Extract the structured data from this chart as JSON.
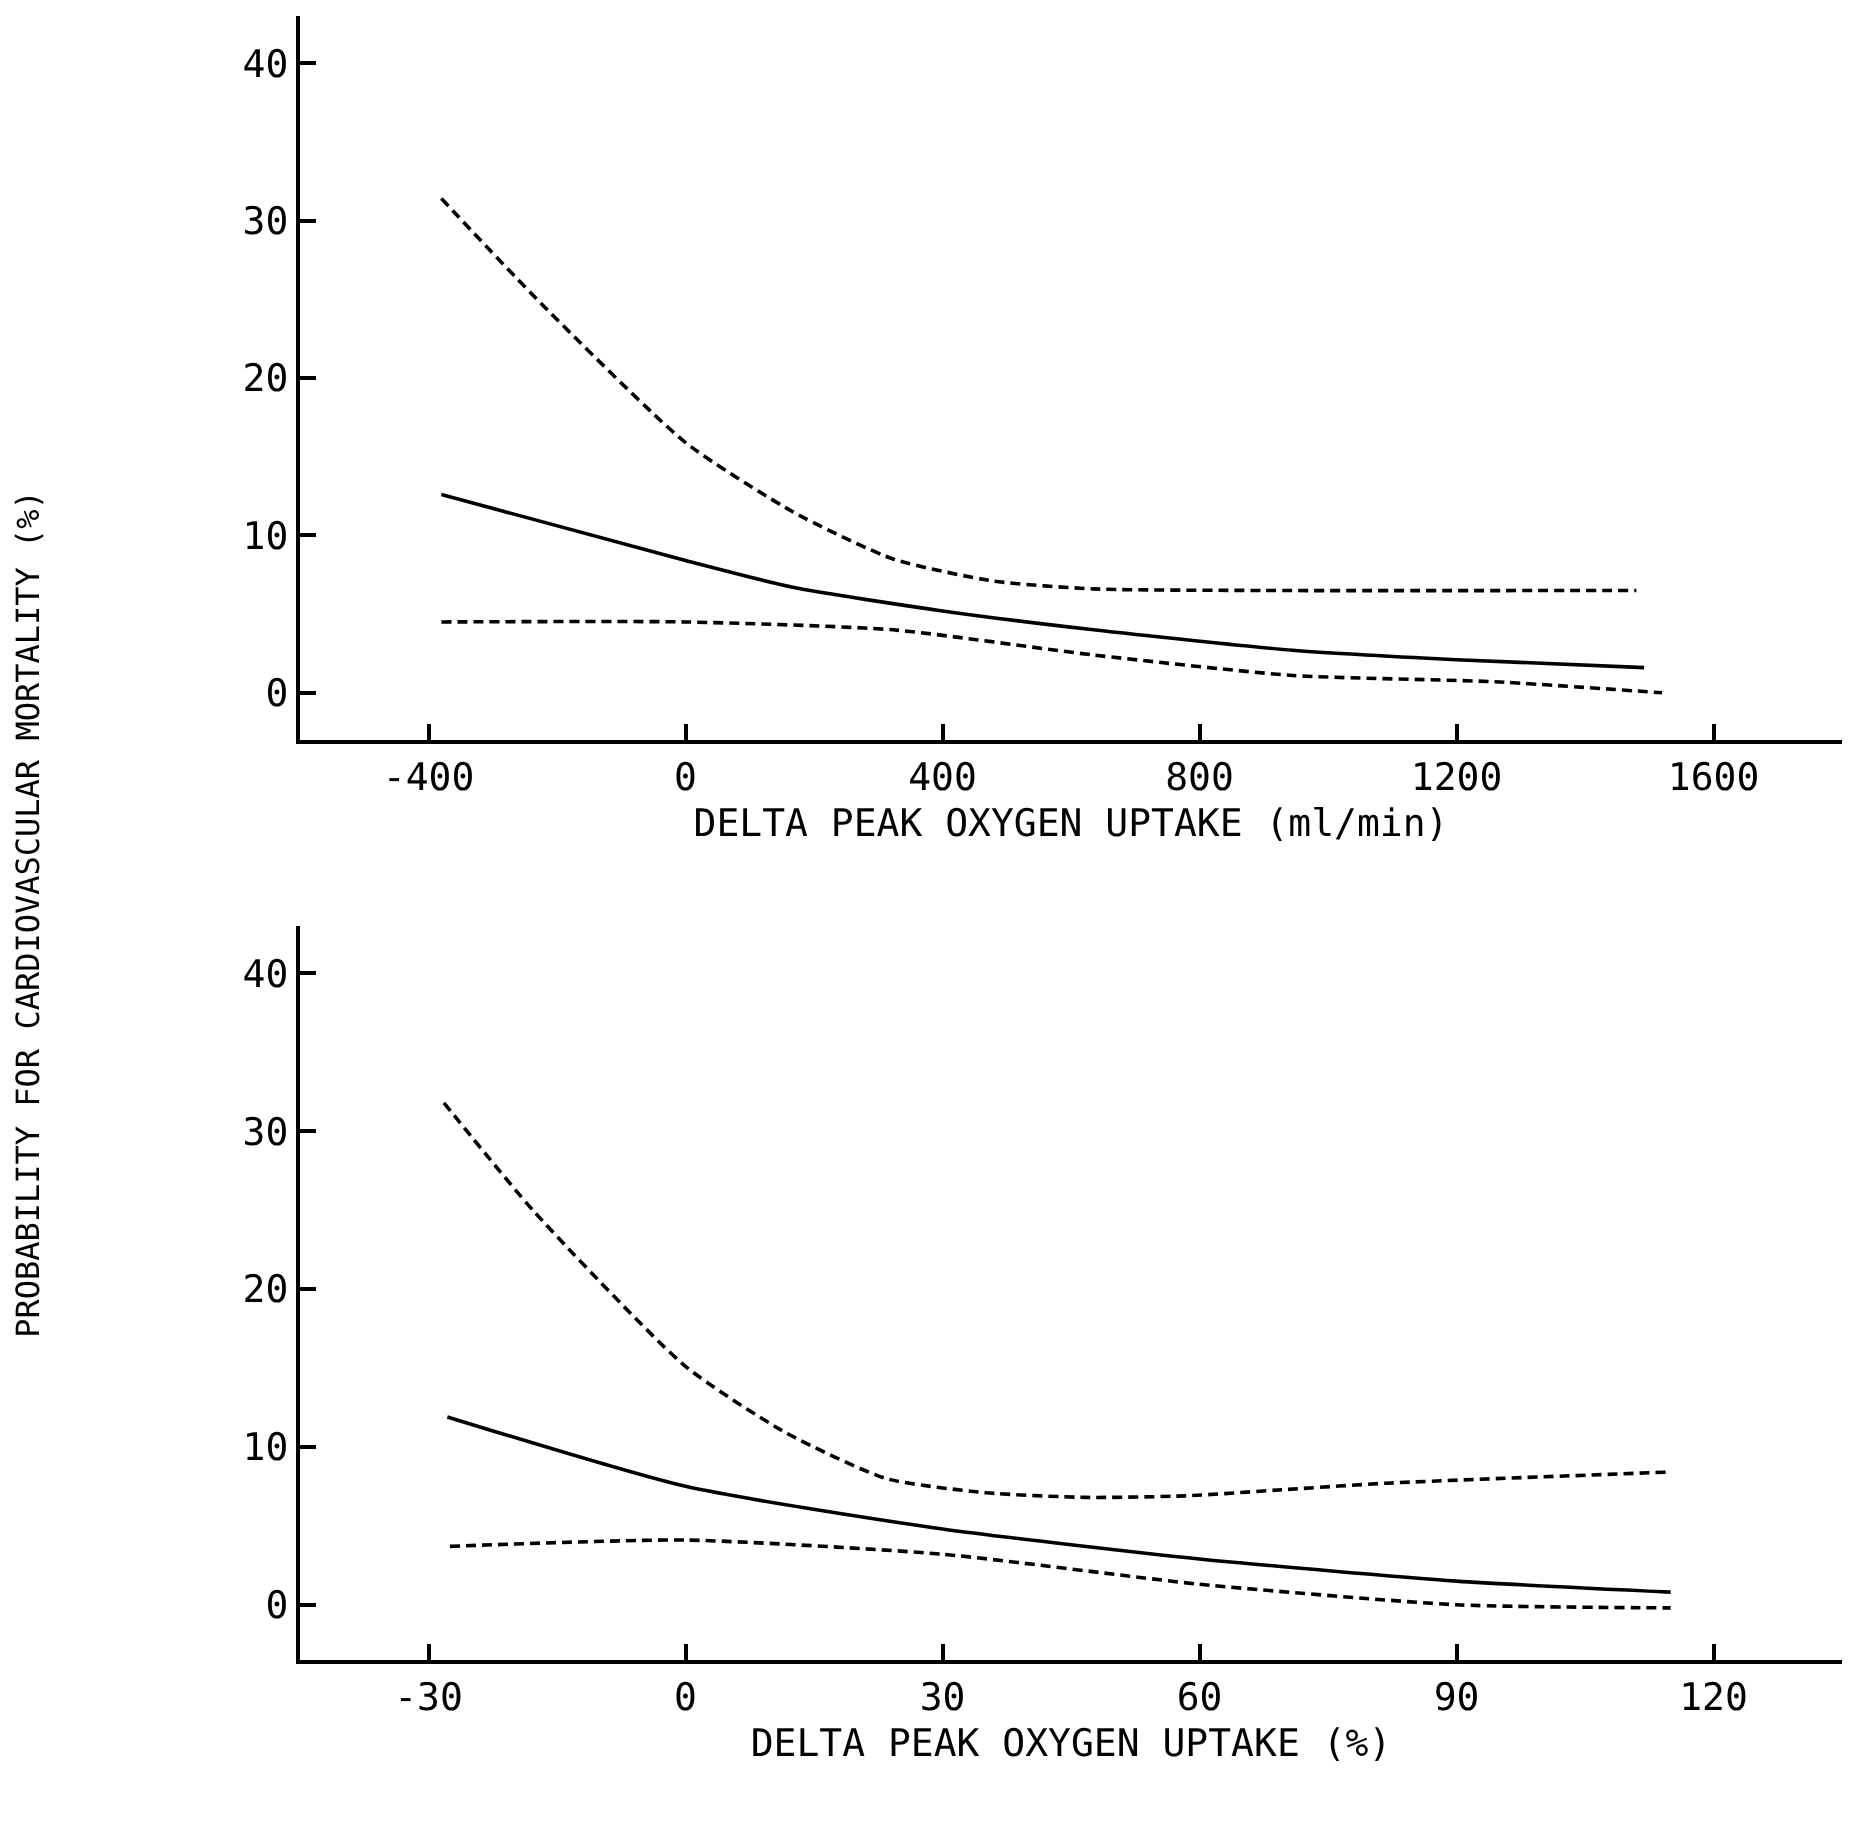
{
  "chart_data": [
    {
      "type": "line",
      "xlabel": "DELTA PEAK OXYGEN UPTAKE (ml/min)",
      "ylabel": "PROBABILITY FOR CARDIOVASCULAR MORTALITY (%)",
      "xlim": [
        -600,
        1800
      ],
      "xticks": [
        -400,
        0,
        400,
        800,
        1200,
        1600
      ],
      "ylim": [
        -3,
        43
      ],
      "yticks": [
        0,
        10,
        20,
        30,
        40
      ],
      "series": [
        {
          "color": "#000000",
          "line_style": "dashed",
          "x": [
            -380,
            -224,
            0,
            167,
            323,
            479,
            635,
            900,
            1480
          ],
          "values": [
            31.4,
            24.7,
            15.9,
            11.5,
            8.5,
            7.1,
            6.6,
            6.5,
            6.5
          ]
        },
        {
          "color": "#000000",
          "line_style": "solid",
          "x": [
            -380,
            0,
            167,
            400,
            635,
            945,
            1200,
            1492
          ],
          "values": [
            12.6,
            8.4,
            6.7,
            5.2,
            4.0,
            2.7,
            2.1,
            1.6
          ]
        },
        {
          "color": "#000000",
          "line_style": "dashed",
          "x": [
            -380,
            0,
            323,
            635,
            945,
            1260,
            1520
          ],
          "values": [
            4.5,
            4.5,
            4.0,
            2.4,
            1.1,
            0.7,
            0
          ]
        }
      ]
    },
    {
      "type": "line",
      "xlabel": "DELTA PEAK OXYGEN UPTAKE (%)",
      "xlim": [
        -45,
        135
      ],
      "xticks": [
        -30,
        0,
        30,
        60,
        90,
        120
      ],
      "ylim": [
        -3.5,
        43
      ],
      "yticks": [
        0,
        10,
        20,
        30,
        40
      ],
      "series": [
        {
          "color": "#000000",
          "line_style": "dashed",
          "x": [
            -28.2,
            -17.5,
            0,
            11.7,
            23.4,
            35,
            46.8,
            58.4,
            70.1,
            81.8,
            114.5
          ],
          "values": [
            31.8,
            24.8,
            15.1,
            10.9,
            8.0,
            7.1,
            6.8,
            6.9,
            7.3,
            7.7,
            8.4
          ]
        },
        {
          "color": "#000000",
          "line_style": "solid",
          "x": [
            -27.8,
            0,
            30,
            60,
            90,
            115
          ],
          "values": [
            11.9,
            7.5,
            4.8,
            2.9,
            1.5,
            0.8
          ]
        },
        {
          "color": "#000000",
          "line_style": "dashed",
          "x": [
            -27.5,
            0,
            30,
            60,
            90,
            115
          ],
          "values": [
            3.7,
            4.1,
            3.2,
            1.3,
            0,
            -0.2
          ]
        }
      ]
    }
  ]
}
